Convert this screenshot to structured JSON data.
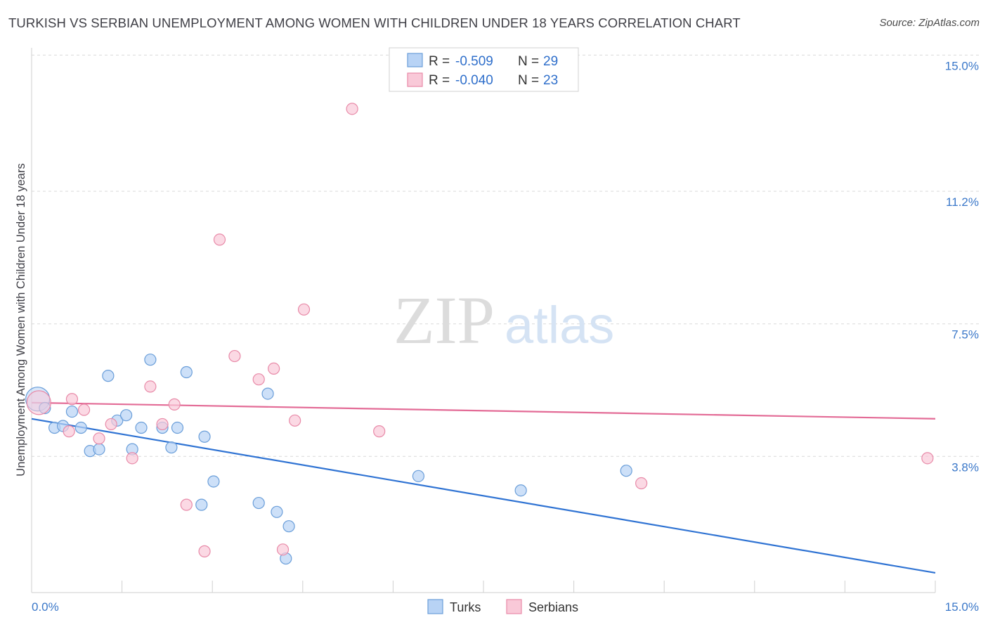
{
  "header": {
    "title": "TURKISH VS SERBIAN UNEMPLOYMENT AMONG WOMEN WITH CHILDREN UNDER 18 YEARS CORRELATION CHART",
    "source": "Source: ZipAtlas.com"
  },
  "watermark": {
    "zip": "ZIP",
    "atlas": "atlas"
  },
  "stats_box": {
    "rows": [
      {
        "r_label": "R = ",
        "r_value": "-0.509",
        "n_label": "N = ",
        "n_value": "29"
      },
      {
        "r_label": "R = ",
        "r_value": "-0.040",
        "n_label": "N = ",
        "n_value": "23"
      }
    ]
  },
  "colors": {
    "turks_fill": "#b8d3f5",
    "turks_stroke": "#6a9ed9",
    "turks_line": "#2f73d3",
    "serbians_fill": "#f9c9d8",
    "serbians_stroke": "#e88aa8",
    "serbians_line": "#e36b96",
    "tick_label": "#3b78c9",
    "grid": "#d9d9d9"
  },
  "chart_data": {
    "type": "scatter",
    "title": "TURKISH VS SERBIAN UNEMPLOYMENT AMONG WOMEN WITH CHILDREN UNDER 18 YEARS CORRELATION CHART",
    "xlabel": "",
    "ylabel": "Unemployment Among Women with Children Under 18 years",
    "xlim": [
      0,
      15
    ],
    "ylim": [
      0,
      15.4
    ],
    "x_tick_labels": [
      "0.0%",
      "15.0%"
    ],
    "y_ticks": [
      3.8,
      7.5,
      11.2,
      15.0
    ],
    "y_tick_labels": [
      "3.8%",
      "7.5%",
      "11.2%",
      "15.0%"
    ],
    "grid": true,
    "legend_position": "bottom-center",
    "series": [
      {
        "name": "Turks",
        "r": -0.509,
        "n": 29,
        "trend": {
          "x": [
            0,
            15
          ],
          "y": [
            4.85,
            0.55
          ]
        },
        "points": [
          {
            "x": 0.1,
            "y": 5.4,
            "big": true
          },
          {
            "x": 0.22,
            "y": 5.15
          },
          {
            "x": 0.38,
            "y": 4.6
          },
          {
            "x": 0.52,
            "y": 4.65
          },
          {
            "x": 0.67,
            "y": 5.05
          },
          {
            "x": 0.82,
            "y": 4.6
          },
          {
            "x": 0.97,
            "y": 3.95
          },
          {
            "x": 1.12,
            "y": 4.0
          },
          {
            "x": 1.27,
            "y": 6.05
          },
          {
            "x": 1.42,
            "y": 4.8
          },
          {
            "x": 1.57,
            "y": 4.95
          },
          {
            "x": 1.67,
            "y": 4.0
          },
          {
            "x": 1.82,
            "y": 4.6
          },
          {
            "x": 1.97,
            "y": 6.5
          },
          {
            "x": 2.17,
            "y": 4.6
          },
          {
            "x": 2.32,
            "y": 4.05
          },
          {
            "x": 2.42,
            "y": 4.6
          },
          {
            "x": 2.57,
            "y": 6.15
          },
          {
            "x": 2.82,
            "y": 2.45
          },
          {
            "x": 2.87,
            "y": 4.35
          },
          {
            "x": 3.02,
            "y": 3.1
          },
          {
            "x": 3.77,
            "y": 2.5
          },
          {
            "x": 3.92,
            "y": 5.55
          },
          {
            "x": 4.07,
            "y": 2.25
          },
          {
            "x": 4.22,
            "y": 0.95
          },
          {
            "x": 4.27,
            "y": 1.85
          },
          {
            "x": 6.42,
            "y": 3.25
          },
          {
            "x": 8.12,
            "y": 2.85
          },
          {
            "x": 9.87,
            "y": 3.4
          }
        ]
      },
      {
        "name": "Serbians",
        "r": -0.04,
        "n": 23,
        "trend": {
          "x": [
            0,
            15
          ],
          "y": [
            5.3,
            4.85
          ]
        },
        "points": [
          {
            "x": 0.12,
            "y": 5.3,
            "big": true
          },
          {
            "x": 0.67,
            "y": 5.4
          },
          {
            "x": 0.62,
            "y": 4.5
          },
          {
            "x": 0.87,
            "y": 5.1
          },
          {
            "x": 1.12,
            "y": 4.3
          },
          {
            "x": 1.32,
            "y": 4.7
          },
          {
            "x": 1.67,
            "y": 3.75
          },
          {
            "x": 1.97,
            "y": 5.75
          },
          {
            "x": 2.17,
            "y": 4.7
          },
          {
            "x": 2.37,
            "y": 5.25
          },
          {
            "x": 2.57,
            "y": 2.45
          },
          {
            "x": 2.87,
            "y": 1.15
          },
          {
            "x": 3.12,
            "y": 9.85
          },
          {
            "x": 3.37,
            "y": 6.6
          },
          {
            "x": 3.77,
            "y": 5.95
          },
          {
            "x": 4.02,
            "y": 6.25
          },
          {
            "x": 4.17,
            "y": 1.2
          },
          {
            "x": 4.37,
            "y": 4.8
          },
          {
            "x": 4.52,
            "y": 7.9
          },
          {
            "x": 5.32,
            "y": 13.5
          },
          {
            "x": 5.77,
            "y": 4.5
          },
          {
            "x": 10.12,
            "y": 3.05
          },
          {
            "x": 14.87,
            "y": 3.75
          }
        ]
      }
    ]
  }
}
